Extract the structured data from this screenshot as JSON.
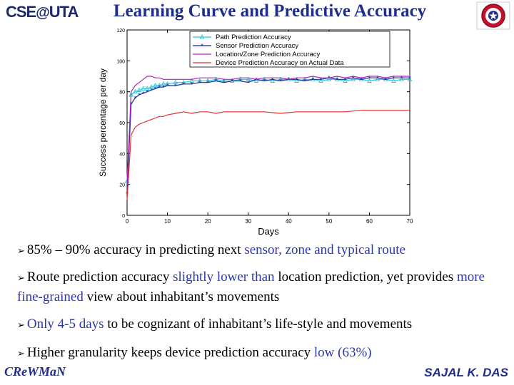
{
  "header": {
    "logo_text_left": "CSE",
    "logo_text_right": "UTA",
    "title": "Learning Curve and Predictive Accuracy"
  },
  "chart_data": {
    "type": "line",
    "title": "",
    "xlabel": "Days",
    "ylabel": "Success percentage per day",
    "xlim": [
      0,
      70
    ],
    "ylim": [
      0,
      120
    ],
    "x_ticks": [
      0,
      10,
      20,
      30,
      40,
      50,
      60,
      70
    ],
    "y_ticks": [
      0,
      20,
      40,
      60,
      80,
      100,
      120
    ],
    "grid": false,
    "legend_position": "top-right",
    "series": [
      {
        "name": "Path Prediction Accuracy",
        "color": "#28c8e0",
        "marker": "triangle",
        "x": [
          0,
          1,
          2,
          3,
          4,
          5,
          6,
          7,
          8,
          9,
          10,
          12,
          14,
          16,
          18,
          20,
          22,
          24,
          26,
          28,
          30,
          32,
          34,
          36,
          38,
          40,
          42,
          44,
          46,
          48,
          50,
          52,
          54,
          56,
          58,
          60,
          62,
          64,
          66,
          68,
          70
        ],
        "y": [
          22,
          78,
          80,
          81,
          82,
          82,
          83,
          84,
          84,
          85,
          85,
          86,
          86,
          87,
          87,
          87,
          88,
          87,
          87,
          88,
          88,
          87,
          88,
          87,
          88,
          88,
          87,
          88,
          88,
          87,
          88,
          88,
          87,
          88,
          88,
          87,
          88,
          88,
          87,
          88,
          88
        ]
      },
      {
        "name": "Sensor Prediction Accuracy",
        "color": "#1a2a9c",
        "marker": "star",
        "x": [
          0,
          1,
          2,
          3,
          4,
          5,
          6,
          7,
          8,
          9,
          10,
          12,
          14,
          16,
          18,
          20,
          22,
          24,
          26,
          28,
          30,
          32,
          34,
          36,
          38,
          40,
          42,
          44,
          46,
          48,
          50,
          52,
          54,
          56,
          58,
          60,
          62,
          64,
          66,
          68,
          70
        ],
        "y": [
          14,
          72,
          76,
          78,
          79,
          80,
          81,
          82,
          83,
          83,
          84,
          84,
          85,
          85,
          86,
          86,
          87,
          86,
          87,
          87,
          86,
          88,
          87,
          88,
          87,
          88,
          88,
          87,
          88,
          88,
          89,
          88,
          88,
          89,
          88,
          89,
          89,
          88,
          89,
          89,
          89
        ]
      },
      {
        "name": "Location/Zone Prediction Accuracy",
        "color": "#b020c0",
        "marker": "none",
        "x": [
          0,
          1,
          2,
          3,
          4,
          5,
          6,
          7,
          8,
          9,
          10,
          12,
          14,
          16,
          18,
          20,
          22,
          24,
          26,
          28,
          30,
          32,
          34,
          36,
          38,
          40,
          42,
          44,
          46,
          48,
          50,
          52,
          54,
          56,
          58,
          60,
          62,
          64,
          66,
          68,
          70
        ],
        "y": [
          20,
          80,
          84,
          86,
          88,
          90,
          90,
          89,
          89,
          88,
          88,
          88,
          88,
          88,
          89,
          89,
          89,
          88,
          88,
          89,
          89,
          88,
          89,
          89,
          89,
          88,
          89,
          89,
          90,
          89,
          89,
          90,
          89,
          90,
          89,
          90,
          90,
          89,
          90,
          90,
          90
        ]
      },
      {
        "name": "Device Prediction Accuracy on Actual Data",
        "color": "#e03030",
        "marker": "none",
        "x": [
          0,
          1,
          2,
          3,
          4,
          5,
          6,
          7,
          8,
          9,
          10,
          12,
          14,
          16,
          18,
          20,
          22,
          24,
          26,
          28,
          30,
          34,
          38,
          42,
          46,
          50,
          54,
          58,
          62,
          66,
          70
        ],
        "y": [
          10,
          52,
          57,
          59,
          60,
          61,
          62,
          63,
          64,
          64,
          65,
          66,
          67,
          66,
          67,
          67,
          66,
          67,
          67,
          67,
          67,
          67,
          66,
          67,
          67,
          67,
          67,
          68,
          68,
          68,
          68
        ]
      }
    ]
  },
  "bullets": [
    {
      "parts": [
        {
          "text": "85% – 90% accuracy in predicting next ",
          "color": "#000000"
        },
        {
          "text": "sensor, zone and typical route",
          "color": "#2b36b0"
        }
      ]
    },
    {
      "parts": [
        {
          "text": "Route prediction accuracy ",
          "color": "#000000"
        },
        {
          "text": "slightly lower than ",
          "color": "#2b36b0"
        },
        {
          "text": "location prediction, yet provides ",
          "color": "#000000"
        },
        {
          "text": "more fine-grained ",
          "color": "#2b36b0"
        },
        {
          "text": "view about inhabitant’s movements",
          "color": "#000000"
        }
      ]
    },
    {
      "parts": [
        {
          "text": "Only 4-5 days ",
          "color": "#2b36b0"
        },
        {
          "text": "to be cognizant of inhabitant’s life-style and movements",
          "color": "#000000"
        }
      ]
    },
    {
      "parts": [
        {
          "text": "Higher granularity keeps device prediction accuracy ",
          "color": "#000000"
        },
        {
          "text": "low (63%)",
          "color": "#2b36b0"
        }
      ]
    }
  ],
  "footer": {
    "left": "CReWMaN",
    "right": "SAJAL K. DAS"
  }
}
